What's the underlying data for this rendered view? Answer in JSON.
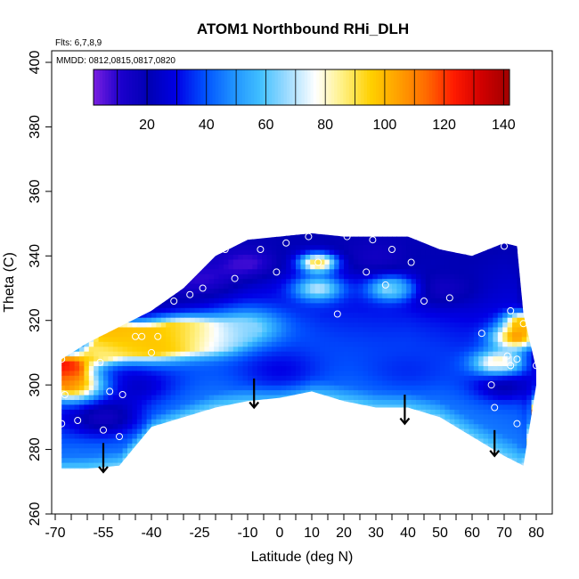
{
  "chart_data": {
    "type": "heatmap",
    "title": "ATOM1 Northbound RHi_DLH",
    "flights_note": "Flts: 6,7,8,9",
    "dates_note": "MMDD: 0812,0815,0817,0820",
    "xlabel": "Latitude (deg N)",
    "ylabel": "Theta (C)",
    "xlim": [
      -70,
      80
    ],
    "ylim": [
      260,
      400
    ],
    "x_ticks": [
      -70,
      -55,
      -40,
      -25,
      -10,
      0,
      10,
      20,
      30,
      40,
      50,
      60,
      70,
      80
    ],
    "x_tick_labels": [
      "-70",
      "-55",
      "-40",
      "-25",
      "-10",
      "0",
      "10",
      "20",
      "30",
      "40",
      "50",
      "60",
      "70",
      "80"
    ],
    "x_minor_ticks": [
      -65,
      -60,
      -50,
      -45,
      -35,
      -30,
      -20,
      -15,
      -5,
      5,
      15,
      25,
      35,
      45,
      55,
      65,
      75
    ],
    "y_ticks": [
      260,
      280,
      300,
      320,
      340,
      360,
      380,
      400
    ],
    "y_tick_labels": [
      "260",
      "280",
      "300",
      "320",
      "340",
      "360",
      "380",
      "400"
    ],
    "colorbar": {
      "range": [
        2,
        142
      ],
      "ticks": [
        20,
        40,
        60,
        80,
        100,
        120,
        140
      ],
      "tick_labels": [
        "20",
        "40",
        "60",
        "80",
        "100",
        "120",
        "140"
      ],
      "colors": [
        "#7a1fe0",
        "#1a00cc",
        "#0000b4",
        "#0000e6",
        "#0050ff",
        "#1e90ff",
        "#40bfff",
        "#9fdcff",
        "#ffffff",
        "#fff080",
        "#ffd000",
        "#ffa000",
        "#ff6a00",
        "#ff1a00",
        "#d00000",
        "#a00000"
      ]
    },
    "surface_theta": [
      [
        -68,
        274
      ],
      [
        -60,
        274
      ],
      [
        -50,
        275
      ],
      [
        -40,
        287
      ],
      [
        -30,
        290
      ],
      [
        -20,
        293
      ],
      [
        -10,
        295
      ],
      [
        0,
        296
      ],
      [
        10,
        298
      ],
      [
        20,
        295
      ],
      [
        30,
        293
      ],
      [
        40,
        293
      ],
      [
        50,
        290
      ],
      [
        60,
        284
      ],
      [
        70,
        278
      ],
      [
        76,
        275
      ],
      [
        80,
        300
      ]
    ],
    "top_theta": [
      [
        -68,
        308
      ],
      [
        -60,
        313
      ],
      [
        -50,
        318
      ],
      [
        -40,
        323
      ],
      [
        -30,
        330
      ],
      [
        -20,
        340
      ],
      [
        -10,
        345
      ],
      [
        0,
        346
      ],
      [
        10,
        347
      ],
      [
        20,
        346
      ],
      [
        30,
        346
      ],
      [
        40,
        346
      ],
      [
        50,
        342
      ],
      [
        60,
        340
      ],
      [
        70,
        344
      ],
      [
        74,
        343
      ],
      [
        76,
        322
      ],
      [
        80,
        305
      ]
    ],
    "features": [
      {
        "lat": -65,
        "theta": 300,
        "value": 110,
        "r": 5
      },
      {
        "lat": -67,
        "theta": 306,
        "value": 128,
        "r": 4
      },
      {
        "lat": -56,
        "theta": 310,
        "value": 85,
        "r": 4
      },
      {
        "lat": -52,
        "theta": 316,
        "value": 100,
        "r": 4
      },
      {
        "lat": -45,
        "theta": 313,
        "value": 95,
        "r": 5
      },
      {
        "lat": -36,
        "theta": 314,
        "value": 100,
        "r": 6
      },
      {
        "lat": -28,
        "theta": 316,
        "value": 90,
        "r": 5
      },
      {
        "lat": -20,
        "theta": 314,
        "value": 72,
        "r": 5
      },
      {
        "lat": -10,
        "theta": 318,
        "value": 65,
        "r": 6
      },
      {
        "lat": 12,
        "theta": 338,
        "value": 95,
        "r": 3
      },
      {
        "lat": 12,
        "theta": 330,
        "value": 70,
        "r": 4
      },
      {
        "lat": 35,
        "theta": 330,
        "value": 70,
        "r": 4
      },
      {
        "lat": 68,
        "theta": 307,
        "value": 85,
        "r": 4
      },
      {
        "lat": 74,
        "theta": 315,
        "value": 105,
        "r": 4
      },
      {
        "lat": 76,
        "theta": 320,
        "value": 95,
        "r": 3
      },
      {
        "lat": -55,
        "theta": 290,
        "value": 15,
        "r": 6
      },
      {
        "lat": -45,
        "theta": 300,
        "value": 25,
        "r": 6
      },
      {
        "lat": -25,
        "theta": 333,
        "value": 10,
        "r": 6
      },
      {
        "lat": -10,
        "theta": 338,
        "value": 8,
        "r": 5
      },
      {
        "lat": 30,
        "theta": 340,
        "value": 15,
        "r": 6
      },
      {
        "lat": 50,
        "theta": 330,
        "value": 15,
        "r": 6
      },
      {
        "lat": 70,
        "theta": 300,
        "value": 20,
        "r": 5
      },
      {
        "lat": 0,
        "theta": 305,
        "value": 30,
        "r": 8
      },
      {
        "lat": 40,
        "theta": 305,
        "value": 35,
        "r": 8
      }
    ],
    "flight_points": [
      {
        "lat": -67,
        "theta": 297
      },
      {
        "lat": -68,
        "theta": 308
      },
      {
        "lat": -68,
        "theta": 288
      },
      {
        "lat": -63,
        "theta": 289
      },
      {
        "lat": -56,
        "theta": 307
      },
      {
        "lat": -55,
        "theta": 286
      },
      {
        "lat": -53,
        "theta": 298
      },
      {
        "lat": -50,
        "theta": 284
      },
      {
        "lat": -49,
        "theta": 297
      },
      {
        "lat": -45,
        "theta": 315
      },
      {
        "lat": -43,
        "theta": 315
      },
      {
        "lat": -40,
        "theta": 310
      },
      {
        "lat": -38,
        "theta": 315
      },
      {
        "lat": -33,
        "theta": 326
      },
      {
        "lat": -28,
        "theta": 328
      },
      {
        "lat": -24,
        "theta": 330
      },
      {
        "lat": -25,
        "theta": 340
      },
      {
        "lat": -17,
        "theta": 342
      },
      {
        "lat": -14,
        "theta": 333
      },
      {
        "lat": -6,
        "theta": 342
      },
      {
        "lat": -1,
        "theta": 335
      },
      {
        "lat": 2,
        "theta": 344
      },
      {
        "lat": 9,
        "theta": 346
      },
      {
        "lat": 12,
        "theta": 338
      },
      {
        "lat": 18,
        "theta": 322
      },
      {
        "lat": 21,
        "theta": 346
      },
      {
        "lat": 27,
        "theta": 335
      },
      {
        "lat": 29,
        "theta": 345
      },
      {
        "lat": 33,
        "theta": 331
      },
      {
        "lat": 35,
        "theta": 342
      },
      {
        "lat": 41,
        "theta": 338
      },
      {
        "lat": 45,
        "theta": 326
      },
      {
        "lat": 53,
        "theta": 327
      },
      {
        "lat": 63,
        "theta": 316
      },
      {
        "lat": 66,
        "theta": 300
      },
      {
        "lat": 67,
        "theta": 293
      },
      {
        "lat": 70,
        "theta": 343
      },
      {
        "lat": 71,
        "theta": 309
      },
      {
        "lat": 72,
        "theta": 323
      },
      {
        "lat": 72,
        "theta": 306
      },
      {
        "lat": 74,
        "theta": 308
      },
      {
        "lat": 74,
        "theta": 288
      },
      {
        "lat": 76,
        "theta": 319
      },
      {
        "lat": 80,
        "theta": 306
      }
    ],
    "arrows": [
      {
        "lat": -55,
        "theta_start": 282,
        "theta_end": 273
      },
      {
        "lat": -8,
        "theta_start": 302,
        "theta_end": 293
      },
      {
        "lat": 39,
        "theta_start": 297,
        "theta_end": 288
      },
      {
        "lat": 67,
        "theta_start": 286,
        "theta_end": 278
      }
    ]
  }
}
